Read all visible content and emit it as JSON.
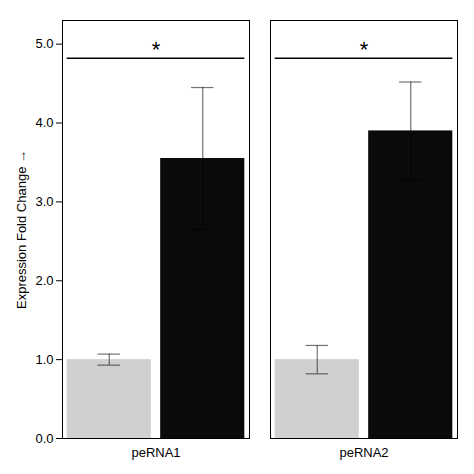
{
  "chart_data": {
    "type": "bar",
    "categories": [
      "peRNA1",
      "peRNA2"
    ],
    "series": [
      {
        "color": "#d0d0d0",
        "values": [
          1.0,
          1.0
        ],
        "errors": [
          0.07,
          0.18
        ]
      },
      {
        "color": "#0a0a0a",
        "values": [
          3.55,
          3.9
        ],
        "errors": [
          0.9,
          0.62
        ]
      }
    ],
    "ylabel": "Expression Fold Change",
    "ylim": [
      0,
      5.3
    ],
    "yticks": [
      0,
      1,
      2,
      3,
      4,
      5
    ],
    "grid": false,
    "annotations": [
      {
        "category": "peRNA1",
        "text": "*",
        "y": 4.82
      },
      {
        "category": "peRNA2",
        "text": "*",
        "y": 4.82
      }
    ]
  }
}
